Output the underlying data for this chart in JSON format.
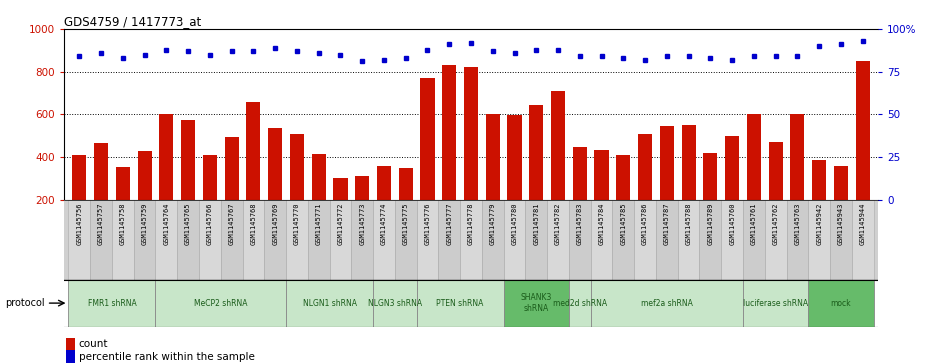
{
  "title": "GDS4759 / 1417773_at",
  "samples": [
    "GSM1145756",
    "GSM1145757",
    "GSM1145758",
    "GSM1145759",
    "GSM1145764",
    "GSM1145765",
    "GSM1145766",
    "GSM1145767",
    "GSM1145768",
    "GSM1145769",
    "GSM1145770",
    "GSM1145771",
    "GSM1145772",
    "GSM1145773",
    "GSM1145774",
    "GSM1145775",
    "GSM1145776",
    "GSM1145777",
    "GSM1145778",
    "GSM1145779",
    "GSM1145780",
    "GSM1145781",
    "GSM1145782",
    "GSM1145783",
    "GSM1145784",
    "GSM1145785",
    "GSM1145786",
    "GSM1145787",
    "GSM1145788",
    "GSM1145789",
    "GSM1145760",
    "GSM1145761",
    "GSM1145762",
    "GSM1145763",
    "GSM1145942",
    "GSM1145943",
    "GSM1145944"
  ],
  "bar_values": [
    410,
    465,
    355,
    430,
    600,
    575,
    410,
    495,
    660,
    535,
    510,
    415,
    300,
    310,
    360,
    350,
    770,
    830,
    820,
    600,
    595,
    645,
    710,
    445,
    435,
    410,
    510,
    545,
    550,
    420,
    500,
    600,
    470,
    600,
    385,
    360,
    850
  ],
  "dot_values": [
    84,
    86,
    83,
    85,
    88,
    87,
    85,
    87,
    87,
    89,
    87,
    86,
    85,
    81,
    82,
    83,
    88,
    91,
    92,
    87,
    86,
    88,
    88,
    84,
    84,
    83,
    82,
    84,
    84,
    83,
    82,
    84,
    84,
    84,
    90,
    91,
    93
  ],
  "protocols": [
    {
      "label": "FMR1 shRNA",
      "start": 0,
      "end": 4,
      "color": "#c8e6c9"
    },
    {
      "label": "MeCP2 shRNA",
      "start": 4,
      "end": 10,
      "color": "#c8e6c9"
    },
    {
      "label": "NLGN1 shRNA",
      "start": 10,
      "end": 14,
      "color": "#c8e6c9"
    },
    {
      "label": "NLGN3 shRNA",
      "start": 14,
      "end": 16,
      "color": "#c8e6c9"
    },
    {
      "label": "PTEN shRNA",
      "start": 16,
      "end": 20,
      "color": "#c8e6c9"
    },
    {
      "label": "SHANK3\nshRNA",
      "start": 20,
      "end": 23,
      "color": "#66bb6a"
    },
    {
      "label": "med2d shRNA",
      "start": 23,
      "end": 24,
      "color": "#c8e6c9"
    },
    {
      "label": "mef2a shRNA",
      "start": 24,
      "end": 31,
      "color": "#c8e6c9"
    },
    {
      "label": "luciferase shRNA",
      "start": 31,
      "end": 34,
      "color": "#c8e6c9"
    },
    {
      "label": "mock",
      "start": 34,
      "end": 37,
      "color": "#66bb6a"
    }
  ],
  "bar_color": "#cc1100",
  "dot_color": "#0000cc",
  "ylim_left": [
    200,
    1000
  ],
  "ylim_right": [
    0,
    100
  ],
  "yticks_left": [
    200,
    400,
    600,
    800,
    1000
  ],
  "yticks_right": [
    0,
    25,
    50,
    75,
    100
  ],
  "ytick_right_labels": [
    "0",
    "25",
    "50",
    "75",
    "100%"
  ],
  "grid_values": [
    400,
    600,
    800
  ],
  "label_bg": "#d0d0d0",
  "protocol_border": "#888888"
}
